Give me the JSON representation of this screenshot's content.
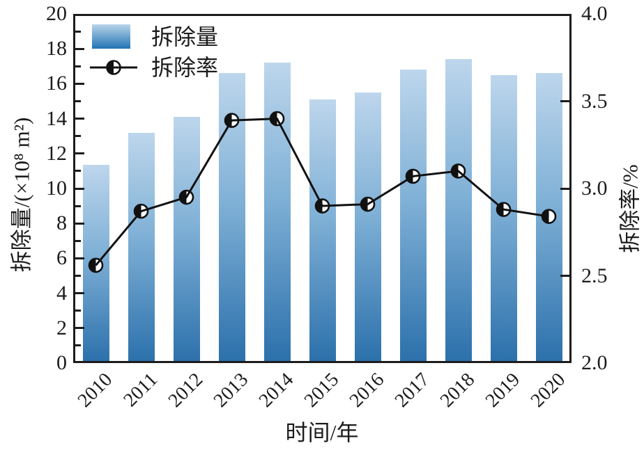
{
  "chart_data": {
    "type": "bar+line",
    "categories": [
      "2010",
      "2011",
      "2012",
      "2013",
      "2014",
      "2015",
      "2016",
      "2017",
      "2018",
      "2019",
      "2020"
    ],
    "series": [
      {
        "name": "拆除量",
        "type": "bar",
        "axis": "left",
        "values": [
          11.35,
          13.2,
          14.1,
          16.6,
          17.2,
          15.1,
          15.5,
          16.8,
          17.4,
          16.5,
          16.6
        ]
      },
      {
        "name": "拆除率",
        "type": "line",
        "axis": "right",
        "values": [
          2.56,
          2.87,
          2.95,
          3.39,
          3.4,
          2.9,
          2.91,
          3.07,
          3.1,
          2.88,
          2.84
        ]
      }
    ],
    "title": "",
    "xlabel": "时间/年",
    "ylabel_left": "拆除量/(×10⁸ m²)",
    "ylabel_right": "拆除率/%",
    "ylim_left": [
      0,
      20
    ],
    "ylim_right": [
      2.0,
      4.0
    ],
    "y_left_tick_labels": [
      "0",
      "2",
      "4",
      "6",
      "8",
      "10",
      "12",
      "14",
      "16",
      "18",
      "20"
    ],
    "y_left_tick_values": [
      0,
      2,
      4,
      6,
      8,
      10,
      12,
      14,
      16,
      18,
      20
    ],
    "y_left_minor_tick_values": [
      1,
      3,
      5,
      7,
      9,
      11,
      13,
      15,
      17,
      19
    ],
    "y_right_tick_labels": [
      "2.0",
      "2.5",
      "3.0",
      "3.5",
      "4.0"
    ],
    "y_right_tick_values": [
      2.0,
      2.5,
      3.0,
      3.5,
      4.0
    ],
    "grid": false,
    "legend_position": "upper left"
  },
  "colors": {
    "bar_gradient_top": "#bdd6ec",
    "bar_gradient_bottom": "#2b70ab",
    "line": "#111111",
    "marker_fill_left_half": "#111111",
    "marker_fill_right_half": "#ffffff",
    "frame": "#1c1c1c",
    "text": "#1c1c1c",
    "background": "#ffffff"
  }
}
